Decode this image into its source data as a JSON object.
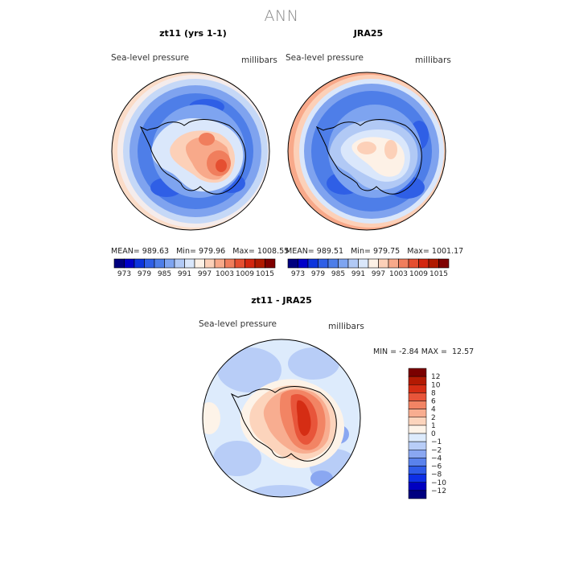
{
  "figure_title": "ANN",
  "chart_data": [
    {
      "type": "heatmap",
      "title": "zt11 (yrs 1-1)",
      "variable_label": "Sea-level pressure",
      "units_label": "millibars",
      "stats": {
        "mean_label": "MEAN=",
        "mean": "989.63",
        "min_label": "Min=",
        "min": "979.96",
        "max_label": "Max=",
        "max": "1008.55"
      },
      "levels": [
        973,
        976,
        979,
        982,
        985,
        988,
        991,
        994,
        997,
        1000,
        1003,
        1006,
        1009,
        1012,
        1015
      ],
      "tick_labels": [
        "973",
        "979",
        "985",
        "991",
        "997",
        "1003",
        "1009",
        "1015"
      ],
      "colors": [
        "#00007f",
        "#0000c8",
        "#0c34dc",
        "#2f5fe6",
        "#4e7ee8",
        "#7ea4f0",
        "#b1c9f5",
        "#dae7fb",
        "#fdf1e6",
        "#fcd0b8",
        "#f8a98a",
        "#f07e5d",
        "#e54f31",
        "#d3260f",
        "#b01a00",
        "#7f0000"
      ]
    },
    {
      "type": "heatmap",
      "title": "JRA25",
      "variable_label": "Sea-level pressure",
      "units_label": "millibars",
      "stats": {
        "mean_label": "MEAN=",
        "mean": "989.51",
        "min_label": "Min=",
        "min": "979.75",
        "max_label": "Max=",
        "max": "1001.17"
      },
      "levels": [
        973,
        976,
        979,
        982,
        985,
        988,
        991,
        994,
        997,
        1000,
        1003,
        1006,
        1009,
        1012,
        1015
      ],
      "tick_labels": [
        "973",
        "979",
        "985",
        "991",
        "997",
        "1003",
        "1009",
        "1015"
      ],
      "colors": [
        "#00007f",
        "#0000c8",
        "#0c34dc",
        "#2f5fe6",
        "#4e7ee8",
        "#7ea4f0",
        "#b1c9f5",
        "#dae7fb",
        "#fdf1e6",
        "#fcd0b8",
        "#f8a98a",
        "#f07e5d",
        "#e54f31",
        "#d3260f",
        "#b01a00",
        "#7f0000"
      ]
    },
    {
      "type": "heatmap",
      "title": "zt11 - JRA25",
      "variable_label": "Sea-level pressure",
      "units_label": "millibars",
      "stats": {
        "min_label": "MIN =",
        "min": "-2.84",
        "max_label": "MAX =",
        "max": "12.57"
      },
      "levels": [
        -12,
        -10,
        -8,
        -6,
        -4,
        -2,
        -1,
        0,
        1,
        2,
        4,
        6,
        8,
        10,
        12
      ],
      "tick_labels": [
        "−12",
        "−10",
        "−8",
        "−6",
        "−4",
        "−2",
        "−1",
        "0",
        "1",
        "2",
        "4",
        "6",
        "8",
        "10",
        "12"
      ],
      "colors": [
        "#000080",
        "#0000c0",
        "#0d2fe6",
        "#2f5be8",
        "#5a82ec",
        "#8aa7f1",
        "#b8cdf7",
        "#ddebfc",
        "#fdf3e8",
        "#fcd4bc",
        "#f8ad90",
        "#f28464",
        "#e8553a",
        "#d52d14",
        "#b31a03",
        "#7a0000"
      ]
    }
  ]
}
